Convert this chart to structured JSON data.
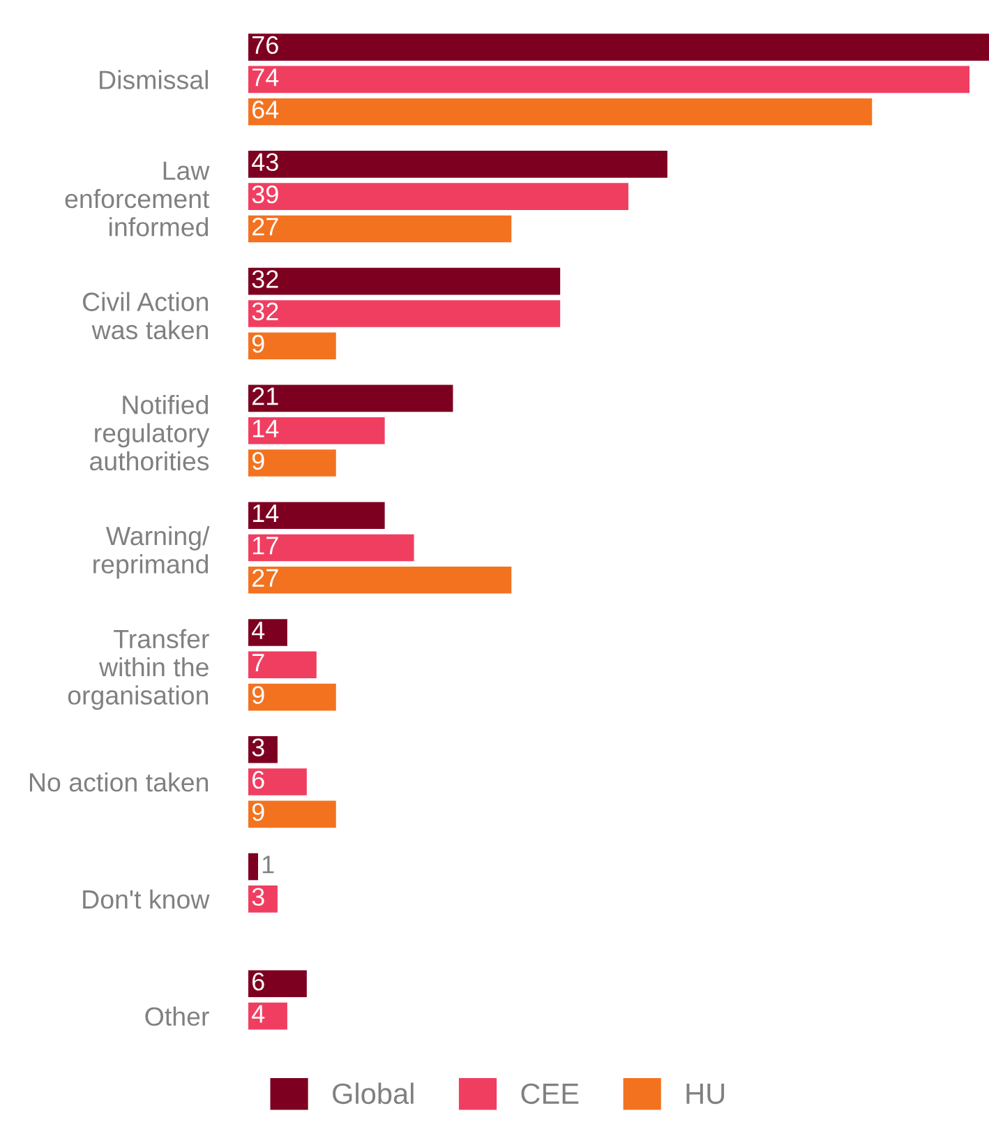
{
  "chart_data": {
    "type": "bar",
    "orientation": "horizontal",
    "categories": [
      "Dismissal",
      "Law\nenforcement\ninformed",
      "Civil Action\nwas taken",
      "Notified\nregulatory\nauthorities",
      "Warning/\nreprimand",
      "Transfer\nwithin the\norganisation",
      "No action taken",
      "Don't know",
      "Other"
    ],
    "series": [
      {
        "name": "Global",
        "color": "#7d0020",
        "values": [
          76,
          43,
          32,
          21,
          14,
          4,
          3,
          1,
          6
        ]
      },
      {
        "name": "CEE",
        "color": "#f03e61",
        "values": [
          74,
          39,
          32,
          14,
          17,
          7,
          6,
          3,
          4
        ]
      },
      {
        "name": "HU",
        "color": "#f37220",
        "values": [
          64,
          27,
          9,
          9,
          27,
          9,
          9,
          null,
          null
        ]
      }
    ],
    "data_labels": true,
    "legend": "bottom",
    "grid": false
  }
}
